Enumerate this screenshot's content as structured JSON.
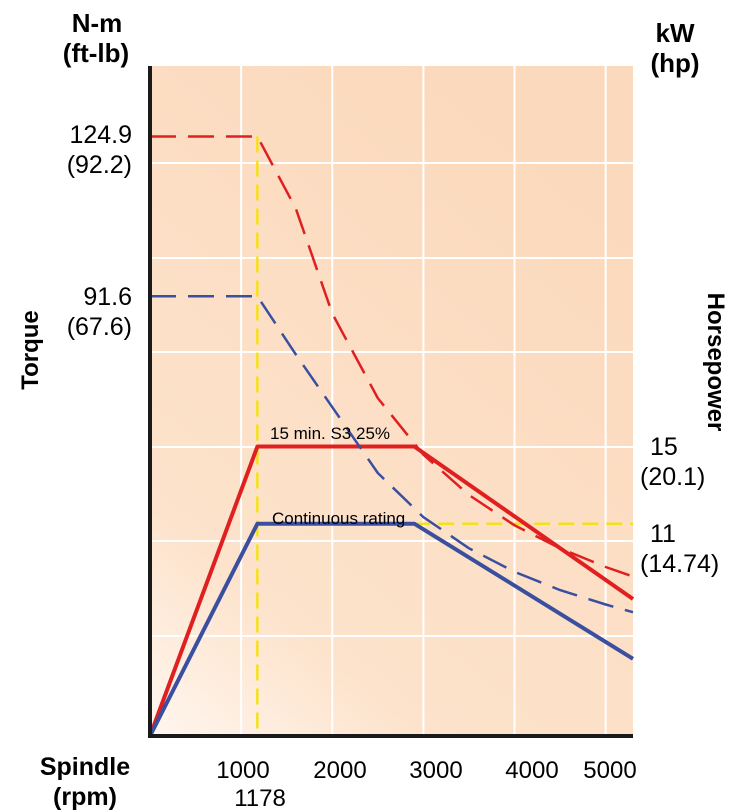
{
  "chart_data": {
    "type": "line",
    "left_axis": {
      "title": "Torque",
      "unit_top": "N-m",
      "unit_bottom": "(ft-lb)"
    },
    "right_axis": {
      "title": "Horsepower",
      "unit_top": "kW",
      "unit_bottom": "(hp)"
    },
    "x_axis": {
      "title_top": "Spindle",
      "title_bottom": "(rpm)",
      "range": [
        0,
        5300
      ]
    },
    "x_ticks": [
      {
        "value": 1000,
        "label": "1000"
      },
      {
        "value": 2000,
        "label": "2000"
      },
      {
        "value": 3000,
        "label": "3000"
      },
      {
        "value": 4000,
        "label": "4000"
      },
      {
        "value": 5000,
        "label": "5000"
      }
    ],
    "x_marker": {
      "value": 1178,
      "label": "1178"
    },
    "torque_labels": [
      {
        "nm": "124.9",
        "ftlb": "(92.2)"
      },
      {
        "nm": "91.6",
        "ftlb": "(67.6)"
      }
    ],
    "power_labels": [
      {
        "kw": "15",
        "hp": "(20.1)"
      },
      {
        "kw": "11",
        "hp": "(14.74)"
      }
    ],
    "annotations": {
      "s3": "15 min. S3  25%",
      "continuous": "Continuous rating"
    },
    "series": [
      {
        "name": "15 min. S3  25%",
        "kind": "power",
        "color": "#e02020",
        "points": [
          [
            0,
            0
          ],
          [
            1178,
            15
          ],
          [
            2900,
            15
          ],
          [
            5300,
            7.1
          ]
        ]
      },
      {
        "name": "Continuous rating",
        "kind": "power",
        "color": "#3a4fa0",
        "points": [
          [
            0,
            0
          ],
          [
            1178,
            11
          ],
          [
            2900,
            11
          ],
          [
            5300,
            4
          ]
        ]
      },
      {
        "kind": "torque",
        "rating": "15 min. S3  25%",
        "color": "#e02020",
        "points": [
          [
            0,
            124.9
          ],
          [
            1178,
            124.9
          ],
          [
            1600,
            109.9
          ],
          [
            2000,
            88
          ],
          [
            2500,
            70.4
          ],
          [
            3000,
            58.6
          ],
          [
            3500,
            50.2
          ],
          [
            4000,
            43.9
          ],
          [
            4500,
            39.1
          ],
          [
            5000,
            35.2
          ],
          [
            5300,
            33.2
          ]
        ]
      },
      {
        "kind": "torque",
        "rating": "Continuous rating",
        "color": "#3a4fa0",
        "points": [
          [
            0,
            91.6
          ],
          [
            1178,
            91.6
          ],
          [
            1600,
            79.5
          ],
          [
            2000,
            68.5
          ],
          [
            2500,
            54.8
          ],
          [
            3000,
            45.6
          ],
          [
            3500,
            39.1
          ],
          [
            4000,
            34.2
          ],
          [
            4500,
            30.4
          ],
          [
            5000,
            27.4
          ],
          [
            5300,
            25.8
          ]
        ]
      }
    ],
    "reference_lines": {
      "vertical_rpm": 1178,
      "horizontal_kw": 11,
      "color": "#f5e11a"
    },
    "grid": true,
    "background_color": "#fcdcc0",
    "axis_color": "#1a1a1a"
  }
}
